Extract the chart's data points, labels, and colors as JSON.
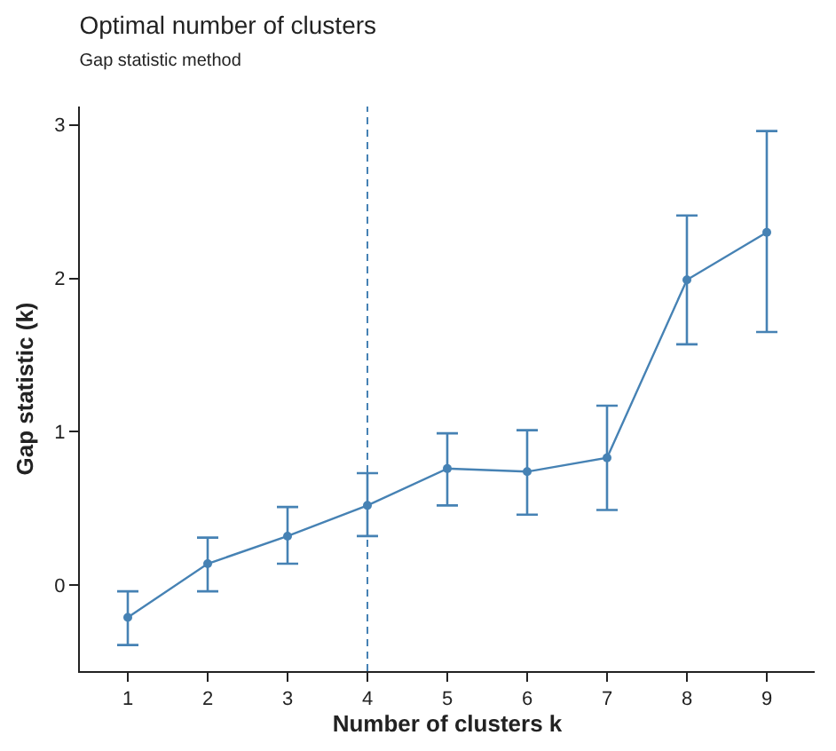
{
  "chart_data": {
    "type": "line",
    "title": "Optimal number of clusters",
    "subtitle": "Gap statistic method",
    "xlabel": "Number of clusters k",
    "ylabel": "Gap statistic (k)",
    "categories": [
      "1",
      "2",
      "3",
      "4",
      "5",
      "6",
      "7",
      "8",
      "9"
    ],
    "series": [
      {
        "color": "#4682b4",
        "values": [
          -0.21,
          0.14,
          0.32,
          0.52,
          0.76,
          0.74,
          0.83,
          1.99,
          2.3
        ],
        "errors": [
          [
            -0.39,
            -0.04
          ],
          [
            -0.04,
            0.31
          ],
          [
            0.14,
            0.51
          ],
          [
            0.32,
            0.73
          ],
          [
            0.52,
            0.99
          ],
          [
            0.46,
            1.01
          ],
          [
            0.49,
            1.17
          ],
          [
            1.57,
            2.41
          ],
          [
            1.65,
            2.96
          ]
        ]
      }
    ],
    "ref_lines": [
      {
        "axis": "x",
        "value": "4",
        "color": "#4682b4",
        "line_style": "dashed"
      }
    ],
    "ylim": [
      -0.56,
      3.12
    ],
    "yticks": [
      0,
      1,
      2,
      3
    ],
    "marker": "circle",
    "line_style": "solid",
    "legend": false
  }
}
